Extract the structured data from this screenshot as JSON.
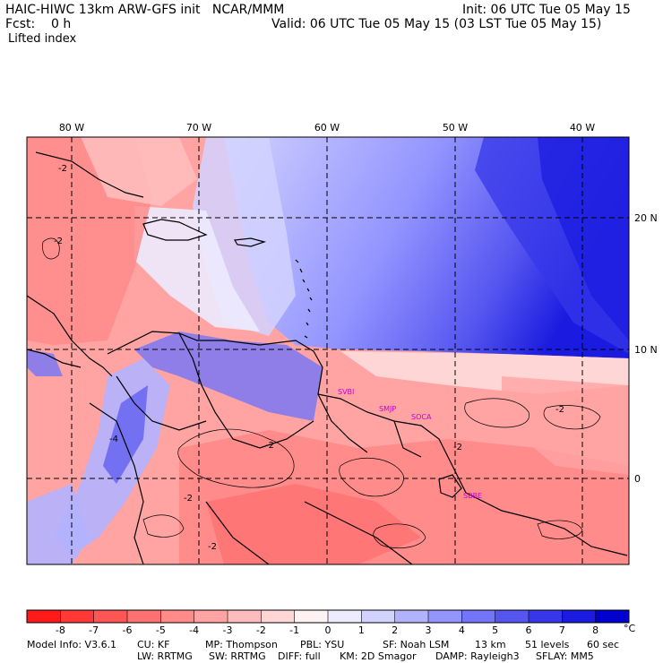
{
  "header": {
    "model_line": "HAIC-HIWC 13km ARW-GFS init   NCAR/MMM",
    "init_line": "Init: 06 UTC Tue 05 May 15",
    "fcst_line": "Fcst:    0 h",
    "valid_line": "Valid: 06 UTC Tue 05 May 15 (03 LST Tue 05 May 15)",
    "field_name": "Lifted index"
  },
  "map": {
    "lon_labels": [
      "80 W",
      "70 W",
      "60 W",
      "50 W",
      "40 W"
    ],
    "lat_labels": [
      "20 N",
      "10 N",
      "0"
    ],
    "stations": [
      "SVBI",
      "SMJP",
      "SOCA",
      "SBBE"
    ],
    "contour_labels": [
      "-2",
      "-2",
      "-2",
      "-2",
      "-2",
      "-2",
      "-4",
      "-2"
    ],
    "colors": {
      "station": "#cc00cc",
      "land_line": "#000000",
      "grid_line": "#000000"
    }
  },
  "colorbar": {
    "ticks": [
      "-8",
      "-7",
      "-6",
      "-5",
      "-4",
      "-3",
      "-2",
      "-1",
      "0",
      "1",
      "2",
      "3",
      "4",
      "5",
      "6",
      "7",
      "8"
    ],
    "unit": "°C",
    "colors": [
      "#ff1a1a",
      "#ff3838",
      "#ff5555",
      "#ff7070",
      "#ff8b8b",
      "#ffa3a3",
      "#ffbcbc",
      "#ffd6d6",
      "#fff2f2",
      "#ecebff",
      "#d2d2ff",
      "#b2b3ff",
      "#9394ff",
      "#7374f7",
      "#5556f0",
      "#3637e8",
      "#1a1ae0",
      "#0000d0"
    ]
  },
  "footer": {
    "line1": [
      {
        "id": "model_info",
        "text": "Model Info: V3.6.1"
      },
      {
        "id": "cu",
        "text": "CU: KF"
      },
      {
        "id": "mp",
        "text": "MP: Thompson"
      },
      {
        "id": "pbl",
        "text": "PBL: YSU"
      },
      {
        "id": "sf",
        "text": "SF: Noah LSM"
      },
      {
        "id": "res",
        "text": "13 km"
      },
      {
        "id": "levels",
        "text": "51 levels"
      },
      {
        "id": "dt",
        "text": "60 sec"
      }
    ],
    "line2": [
      {
        "id": "lw",
        "text": "LW: RRTMG"
      },
      {
        "id": "sw",
        "text": "SW: RRTMG"
      },
      {
        "id": "diff",
        "text": "DIFF: full"
      },
      {
        "id": "km",
        "text": "KM: 2D Smagor"
      },
      {
        "id": "damp",
        "text": "DAMP: Rayleigh3"
      },
      {
        "id": "sflay",
        "text": "SFLAY: MM5"
      }
    ]
  }
}
